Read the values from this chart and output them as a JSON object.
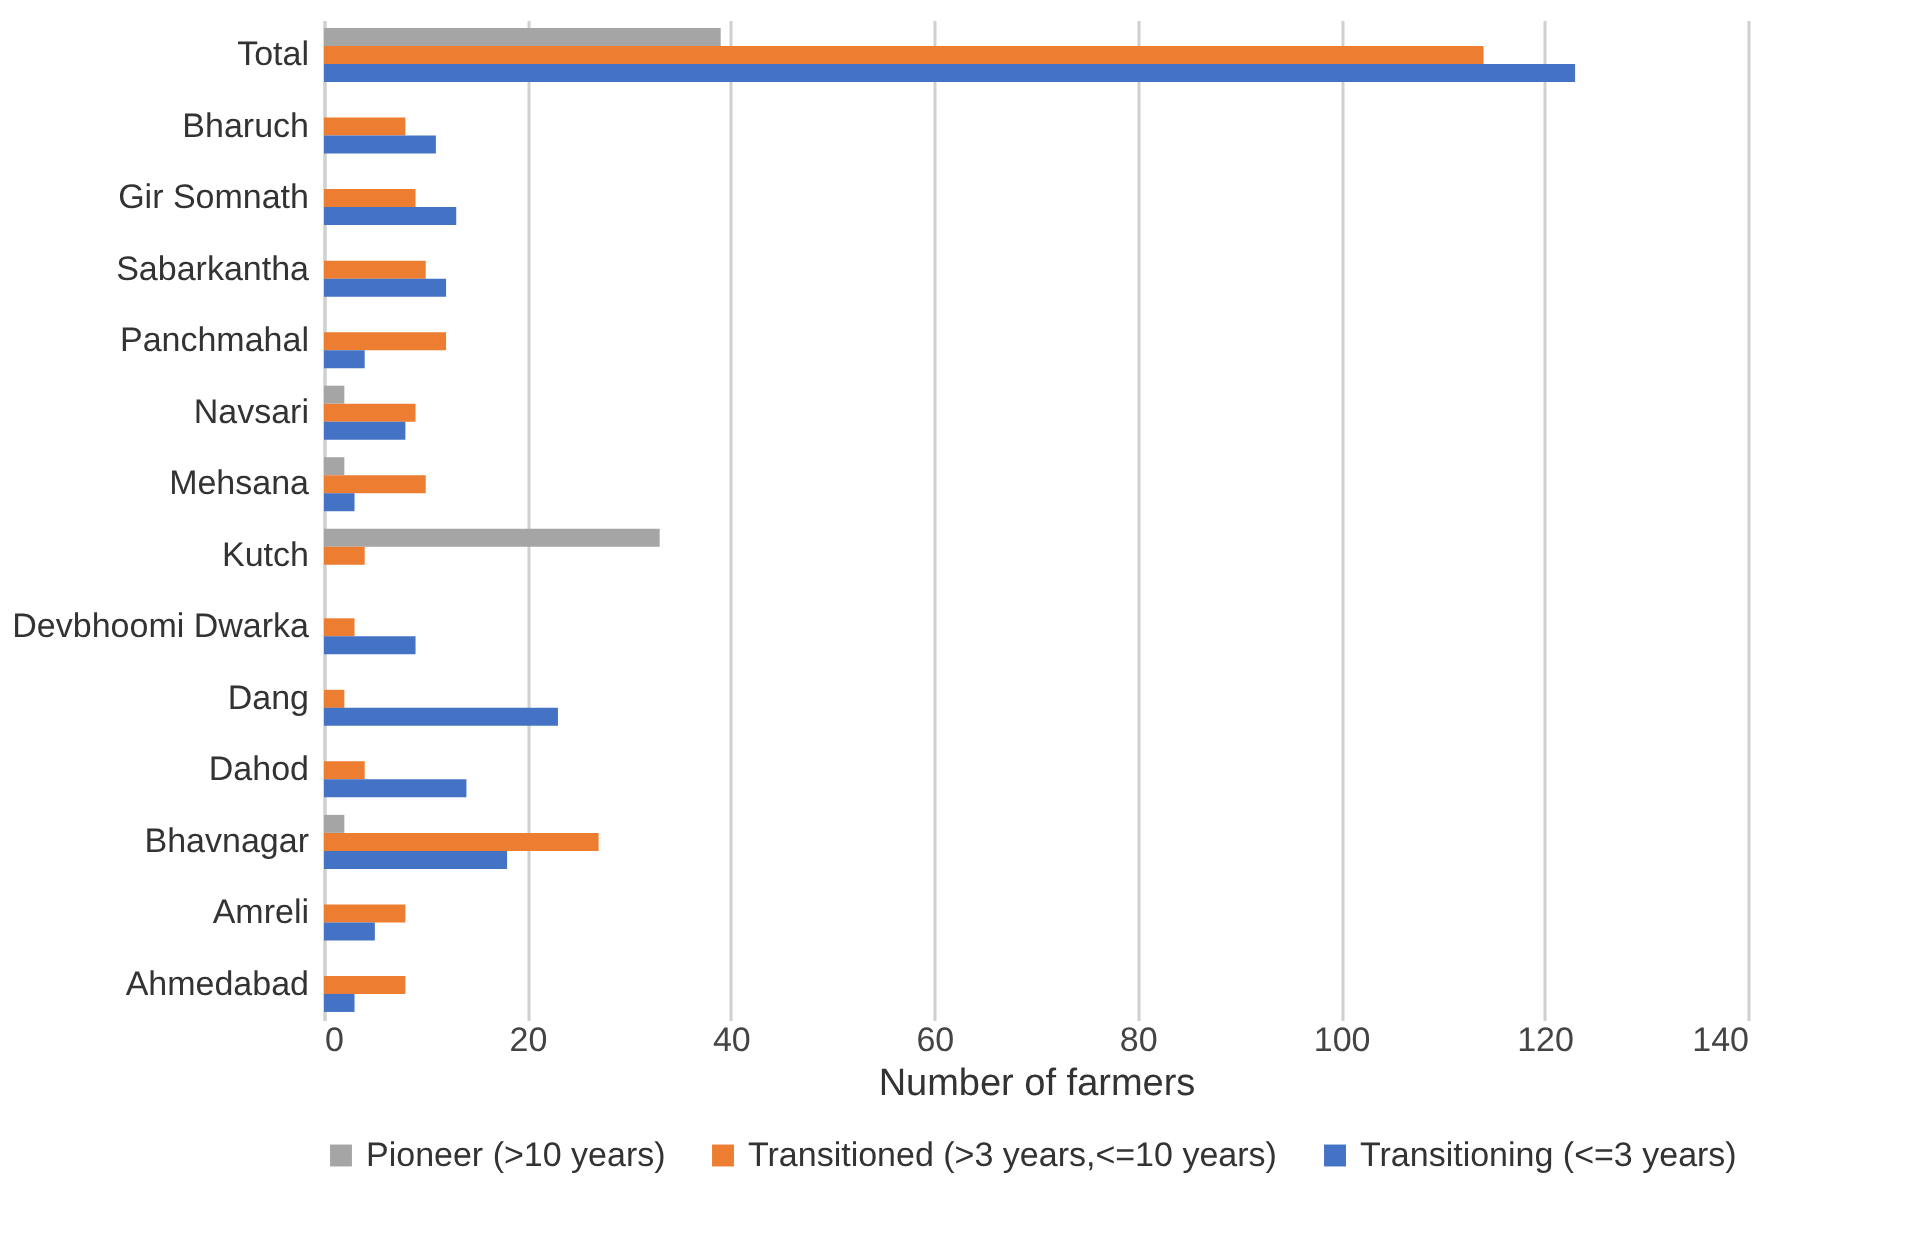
{
  "chart_data": {
    "type": "bar",
    "orientation": "horizontal",
    "xlabel": "Number of farmers",
    "categories": [
      "Total",
      "Bharuch",
      "Gir Somnath",
      "Sabarkantha",
      "Panchmahal",
      "Navsari",
      "Mehsana",
      "Kutch",
      "Devbhoomi Dwarka",
      "Dang",
      "Dahod",
      "Bhavnagar",
      "Amreli",
      "Ahmedabad"
    ],
    "series": [
      {
        "name": "Pioneer (>10 years)",
        "color": "#a5a5a5",
        "values": [
          39,
          null,
          null,
          null,
          null,
          2,
          2,
          33,
          null,
          null,
          null,
          2,
          null,
          null
        ]
      },
      {
        "name": "Transitioned (>3 years,<=10 years)",
        "color": "#ed7d31",
        "values": [
          114,
          8,
          9,
          10,
          12,
          9,
          10,
          4,
          3,
          2,
          4,
          27,
          8,
          8
        ]
      },
      {
        "name": "Transitioning (<=3 years)",
        "color": "#4472c4",
        "values": [
          123,
          11,
          13,
          12,
          4,
          8,
          3,
          null,
          9,
          23,
          14,
          18,
          5,
          3
        ]
      }
    ],
    "xlim": [
      0,
      140
    ],
    "xticks": [
      0,
      20,
      40,
      60,
      80,
      100,
      120,
      140
    ],
    "grid": "x",
    "legend": "bottom"
  }
}
